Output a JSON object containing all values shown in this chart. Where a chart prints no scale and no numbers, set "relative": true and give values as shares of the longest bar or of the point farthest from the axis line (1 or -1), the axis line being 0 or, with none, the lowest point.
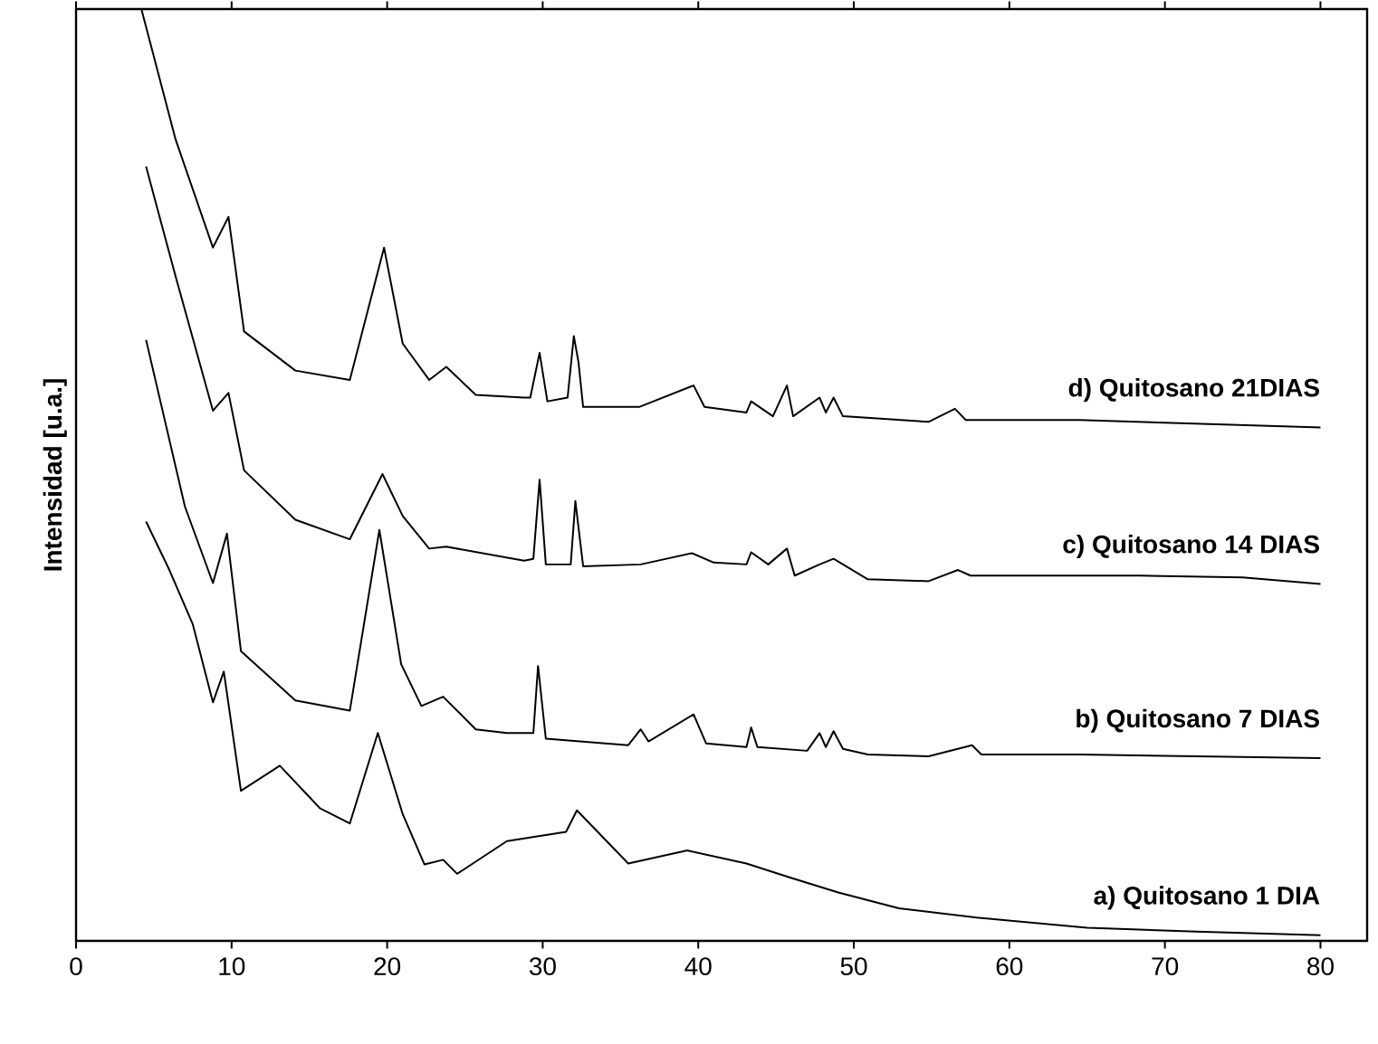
{
  "chart_data": {
    "type": "line",
    "relative": true,
    "ylabel": "Intensidad [u.a.]",
    "xlim": [
      0,
      83
    ],
    "xticks": [
      0,
      10,
      20,
      30,
      40,
      50,
      60,
      70,
      80
    ],
    "series": [
      {
        "name": "a) Quitosano 1 DIA",
        "color": "#000000",
        "x": [
          4.5,
          6,
          7.5,
          8.8,
          9.5,
          10.6,
          13.1,
          15.7,
          17.6,
          19.4,
          21,
          22.4,
          23.6,
          24.5,
          27.7,
          31.5,
          32.2,
          35.5,
          39.3,
          43.1,
          45.9,
          49,
          52.9,
          57.9,
          65,
          72,
          80
        ],
        "values": [
          0.45,
          0.398,
          0.34,
          0.256,
          0.289,
          0.161,
          0.188,
          0.142,
          0.126,
          0.223,
          0.136,
          0.082,
          0.087,
          0.072,
          0.107,
          0.117,
          0.14,
          0.083,
          0.097,
          0.083,
          0.068,
          0.052,
          0.035,
          0.025,
          0.014,
          0.01,
          0.006
        ]
      },
      {
        "name": "b) Quitosano 7 DIAS",
        "color": "#000000",
        "x": [
          4.5,
          7,
          8.8,
          9.7,
          10.6,
          14.1,
          17.6,
          19.5,
          20.9,
          22.2,
          23.6,
          25.7,
          27.7,
          29.4,
          29.7,
          30.2,
          35.5,
          36.3,
          36.8,
          39.7,
          40.5,
          43.1,
          43.4,
          43.8,
          47,
          47.8,
          48.2,
          48.7,
          49.3,
          50.9,
          54.8,
          57.6,
          58.2,
          64.5,
          80
        ],
        "values": [
          0.645,
          0.466,
          0.384,
          0.437,
          0.311,
          0.258,
          0.247,
          0.441,
          0.297,
          0.252,
          0.262,
          0.227,
          0.223,
          0.223,
          0.295,
          0.217,
          0.21,
          0.227,
          0.214,
          0.243,
          0.212,
          0.208,
          0.229,
          0.208,
          0.204,
          0.223,
          0.208,
          0.225,
          0.206,
          0.2,
          0.198,
          0.21,
          0.2,
          0.2,
          0.196
        ]
      },
      {
        "name": "c) Quitosano 14 DIAS",
        "color": "#000000",
        "x": [
          4.5,
          6.4,
          8.8,
          9.8,
          10.8,
          14.1,
          17.6,
          19.7,
          21,
          22.7,
          23.8,
          28.8,
          29.4,
          29.8,
          30.2,
          31.8,
          32.1,
          32.6,
          36.3,
          39.6,
          41,
          43.1,
          43.4,
          44.5,
          45.7,
          46.2,
          47.8,
          48.7,
          50.9,
          54.8,
          56.7,
          57.5,
          68.4,
          75,
          80
        ],
        "values": [
          0.831,
          0.713,
          0.569,
          0.588,
          0.505,
          0.452,
          0.431,
          0.501,
          0.456,
          0.421,
          0.423,
          0.408,
          0.41,
          0.495,
          0.404,
          0.404,
          0.472,
          0.402,
          0.404,
          0.416,
          0.406,
          0.404,
          0.417,
          0.404,
          0.421,
          0.392,
          0.404,
          0.41,
          0.388,
          0.386,
          0.398,
          0.392,
          0.392,
          0.39,
          0.383
        ]
      },
      {
        "name": "d) Quitosano 21DIAS",
        "color": "#000000",
        "x": [
          4.2,
          6.4,
          8.8,
          9.8,
          10.8,
          14.1,
          17.6,
          19.8,
          21,
          22.7,
          23.8,
          25.7,
          28.8,
          29.2,
          29.8,
          30.3,
          31.6,
          32,
          32.3,
          32.6,
          36.2,
          39.7,
          40.4,
          43.1,
          43.4,
          44.8,
          45.7,
          46.1,
          47.8,
          48.2,
          48.7,
          49.3,
          54.8,
          56.5,
          57.2,
          64.5,
          80
        ],
        "values": [
          1.0,
          0.86,
          0.744,
          0.777,
          0.654,
          0.612,
          0.602,
          0.744,
          0.641,
          0.602,
          0.616,
          0.586,
          0.583,
          0.583,
          0.631,
          0.579,
          0.583,
          0.649,
          0.621,
          0.573,
          0.573,
          0.596,
          0.573,
          0.567,
          0.579,
          0.563,
          0.596,
          0.563,
          0.583,
          0.567,
          0.583,
          0.563,
          0.557,
          0.571,
          0.559,
          0.559,
          0.551
        ]
      }
    ]
  }
}
